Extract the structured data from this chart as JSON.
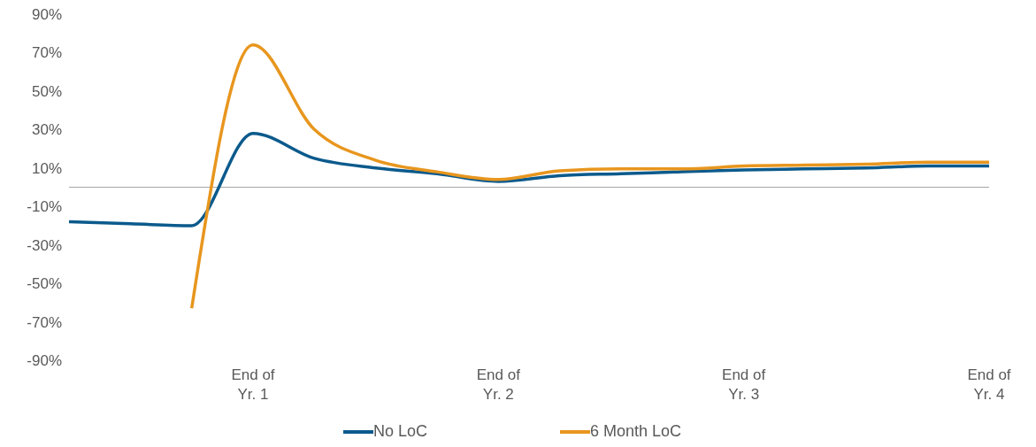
{
  "chart_data": {
    "type": "line",
    "categories": [
      null,
      null,
      null,
      "End of Yr. 1",
      null,
      null,
      null,
      "End of Yr. 2",
      null,
      null,
      null,
      "End of Yr. 3",
      null,
      null,
      null,
      "End of Yr. 4"
    ],
    "series": [
      {
        "name": "No LoC",
        "color": "#0b5a8c",
        "values": [
          -18,
          -19,
          -20,
          28,
          15,
          10,
          7,
          3,
          6,
          7,
          8,
          9,
          9.5,
          10,
          11,
          11
        ]
      },
      {
        "name": "6 Month LoC",
        "color": "#e8961e",
        "values": [
          null,
          null,
          -63,
          74,
          30,
          14,
          8,
          4,
          8.5,
          9.5,
          9.5,
          11,
          11.5,
          12,
          13,
          13
        ]
      }
    ],
    "ylim": [
      -90,
      90
    ],
    "yticks": [
      {
        "value": -90,
        "label": "-90%"
      },
      {
        "value": -70,
        "label": "-70%"
      },
      {
        "value": -50,
        "label": "-50%"
      },
      {
        "value": -30,
        "label": "-30%"
      },
      {
        "value": -10,
        "label": "-10%"
      },
      {
        "value": 10,
        "label": "10%"
      },
      {
        "value": 30,
        "label": "30%"
      },
      {
        "value": 50,
        "label": "50%"
      },
      {
        "value": 70,
        "label": "70%"
      },
      {
        "value": 90,
        "label": "90%"
      }
    ],
    "ref_lines": [
      {
        "axis": "y",
        "value": 0,
        "color": "#a6a6a6"
      }
    ],
    "grid": false,
    "legend": "bottom left",
    "marker": "none",
    "line_style": "solid"
  }
}
